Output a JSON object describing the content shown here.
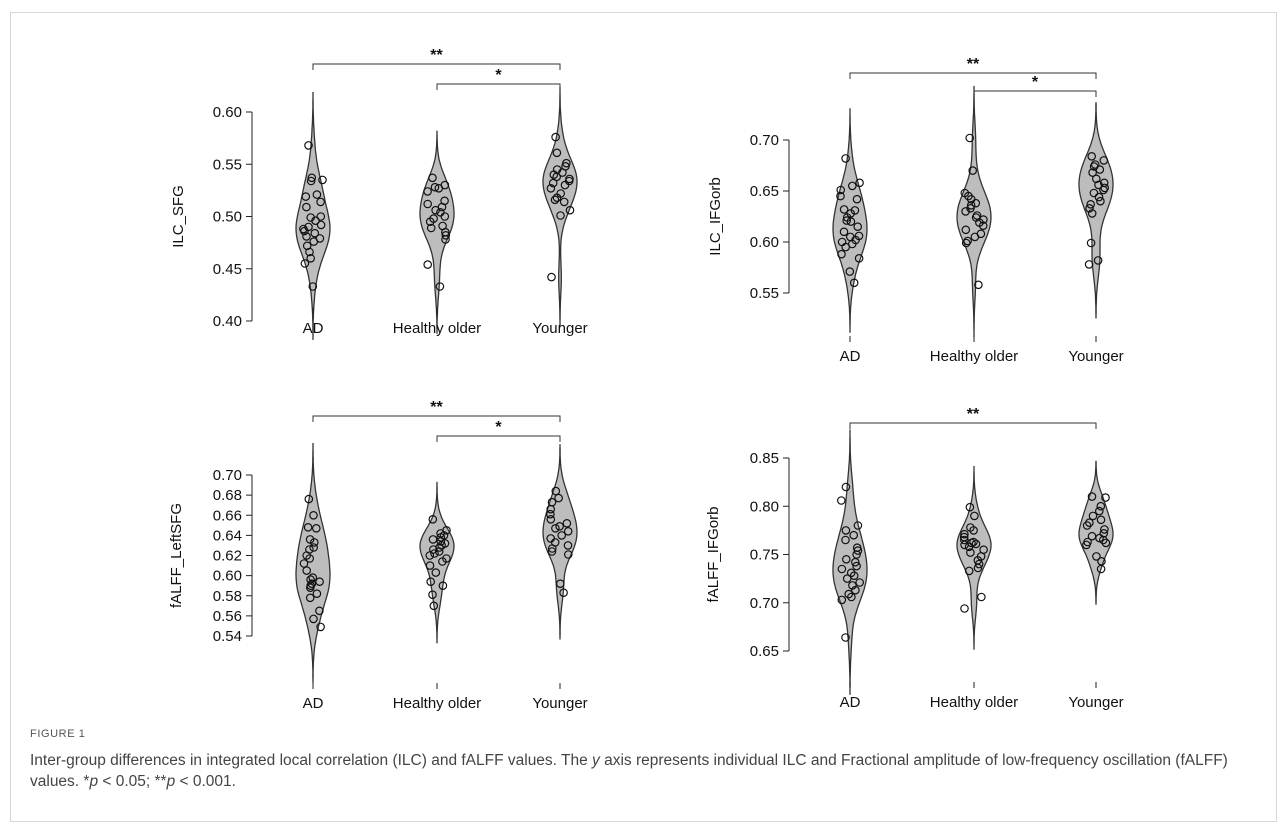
{
  "figure_label": "FIGURE 1",
  "caption": {
    "part1": "Inter-group differences in integrated local correlation (ILC) and fALFF values. The ",
    "y": "y",
    "part2": " axis represents individual ILC and Fractional amplitude of low-frequency oscillation (fALFF) values. *",
    "p1": "p",
    "part3": " < 0.05; **",
    "p2": "p",
    "part4": " < 0.001."
  },
  "chart_data": [
    {
      "type": "violin",
      "ylabel": "ILC_SFG",
      "categories": [
        "AD",
        "Healthy older",
        "Younger"
      ],
      "yticks": [
        0.4,
        0.45,
        0.5,
        0.55,
        0.6
      ],
      "ytick_labels": [
        "0.40",
        "0.45",
        "0.50",
        "0.55",
        "0.60"
      ],
      "ylim": [
        0.4,
        0.6
      ],
      "series": [
        {
          "values": [
            0.568,
            0.537,
            0.535,
            0.534,
            0.521,
            0.519,
            0.514,
            0.509,
            0.5,
            0.499,
            0.496,
            0.492,
            0.49,
            0.488,
            0.486,
            0.484,
            0.481,
            0.479,
            0.476,
            0.472,
            0.466,
            0.46,
            0.455,
            0.433
          ]
        },
        {
          "values": [
            0.537,
            0.53,
            0.528,
            0.527,
            0.524,
            0.515,
            0.512,
            0.509,
            0.506,
            0.504,
            0.5,
            0.498,
            0.495,
            0.491,
            0.489,
            0.485,
            0.482,
            0.478,
            0.454,
            0.433
          ]
        },
        {
          "values": [
            0.576,
            0.561,
            0.551,
            0.548,
            0.545,
            0.542,
            0.54,
            0.538,
            0.536,
            0.534,
            0.532,
            0.53,
            0.527,
            0.522,
            0.518,
            0.516,
            0.514,
            0.506,
            0.501,
            0.442
          ]
        }
      ],
      "comparisons": [
        {
          "from": 0,
          "to": 2,
          "label": "**"
        },
        {
          "from": 1,
          "to": 2,
          "label": "*"
        }
      ]
    },
    {
      "type": "violin",
      "ylabel": "ILC_IFGorb",
      "categories": [
        "AD",
        "Healthy older",
        "Younger"
      ],
      "yticks": [
        0.55,
        0.6,
        0.65,
        0.7
      ],
      "ytick_labels": [
        "0.55",
        "0.60",
        "0.65",
        "0.70"
      ],
      "ylim": [
        0.52,
        0.73
      ],
      "series": [
        {
          "values": [
            0.682,
            0.658,
            0.655,
            0.651,
            0.645,
            0.642,
            0.632,
            0.631,
            0.628,
            0.624,
            0.621,
            0.62,
            0.615,
            0.61,
            0.606,
            0.605,
            0.602,
            0.6,
            0.598,
            0.595,
            0.588,
            0.584,
            0.571,
            0.56
          ]
        },
        {
          "values": [
            0.702,
            0.67,
            0.648,
            0.645,
            0.642,
            0.638,
            0.636,
            0.633,
            0.63,
            0.626,
            0.624,
            0.622,
            0.619,
            0.616,
            0.612,
            0.608,
            0.605,
            0.601,
            0.599,
            0.558
          ]
        },
        {
          "values": [
            0.684,
            0.68,
            0.676,
            0.674,
            0.671,
            0.668,
            0.662,
            0.658,
            0.656,
            0.653,
            0.651,
            0.648,
            0.644,
            0.64,
            0.637,
            0.633,
            0.628,
            0.599,
            0.582,
            0.578
          ]
        }
      ],
      "comparisons": [
        {
          "from": 0,
          "to": 2,
          "label": "**"
        },
        {
          "from": 1,
          "to": 2,
          "label": "*"
        }
      ]
    },
    {
      "type": "violin",
      "ylabel": "fALFF_LeftSFG",
      "categories": [
        "AD",
        "Healthy older",
        "Younger"
      ],
      "yticks": [
        0.54,
        0.56,
        0.58,
        0.6,
        0.62,
        0.64,
        0.66,
        0.68,
        0.7
      ],
      "ytick_labels": [
        "0.54",
        "0.56",
        "0.58",
        "0.60",
        "0.62",
        "0.64",
        "0.66",
        "0.68",
        "0.70"
      ],
      "ylim": [
        0.52,
        0.71
      ],
      "series": [
        {
          "values": [
            0.676,
            0.66,
            0.648,
            0.647,
            0.636,
            0.633,
            0.628,
            0.626,
            0.62,
            0.617,
            0.612,
            0.605,
            0.598,
            0.596,
            0.594,
            0.592,
            0.59,
            0.588,
            0.582,
            0.578,
            0.565,
            0.557,
            0.549
          ]
        },
        {
          "values": [
            0.656,
            0.645,
            0.642,
            0.64,
            0.638,
            0.636,
            0.634,
            0.632,
            0.63,
            0.628,
            0.626,
            0.624,
            0.622,
            0.62,
            0.617,
            0.614,
            0.61,
            0.603,
            0.594,
            0.59,
            0.581,
            0.57
          ]
        },
        {
          "values": [
            0.684,
            0.677,
            0.673,
            0.666,
            0.661,
            0.656,
            0.652,
            0.649,
            0.647,
            0.644,
            0.64,
            0.637,
            0.633,
            0.63,
            0.627,
            0.624,
            0.621,
            0.592,
            0.583
          ]
        }
      ],
      "comparisons": [
        {
          "from": 0,
          "to": 2,
          "label": "**"
        },
        {
          "from": 1,
          "to": 2,
          "label": "*"
        }
      ]
    },
    {
      "type": "violin",
      "ylabel": "fALFF_IFGorb",
      "categories": [
        "AD",
        "Healthy older",
        "Younger"
      ],
      "yticks": [
        0.65,
        0.7,
        0.75,
        0.8,
        0.85
      ],
      "ytick_labels": [
        "0.65",
        "0.70",
        "0.75",
        "0.80",
        "0.85"
      ],
      "ylim": [
        0.63,
        0.86
      ],
      "series": [
        {
          "values": [
            0.82,
            0.806,
            0.78,
            0.775,
            0.77,
            0.765,
            0.757,
            0.754,
            0.75,
            0.745,
            0.742,
            0.738,
            0.735,
            0.731,
            0.728,
            0.725,
            0.721,
            0.718,
            0.713,
            0.709,
            0.706,
            0.703,
            0.664
          ]
        },
        {
          "values": [
            0.799,
            0.79,
            0.778,
            0.775,
            0.771,
            0.768,
            0.765,
            0.763,
            0.762,
            0.761,
            0.76,
            0.758,
            0.755,
            0.752,
            0.748,
            0.744,
            0.74,
            0.736,
            0.733,
            0.706,
            0.694
          ]
        },
        {
          "values": [
            0.81,
            0.809,
            0.8,
            0.795,
            0.79,
            0.786,
            0.783,
            0.78,
            0.776,
            0.772,
            0.769,
            0.767,
            0.765,
            0.763,
            0.762,
            0.76,
            0.748,
            0.743,
            0.735
          ]
        }
      ],
      "comparisons": [
        {
          "from": 0,
          "to": 2,
          "label": "**"
        }
      ]
    }
  ]
}
